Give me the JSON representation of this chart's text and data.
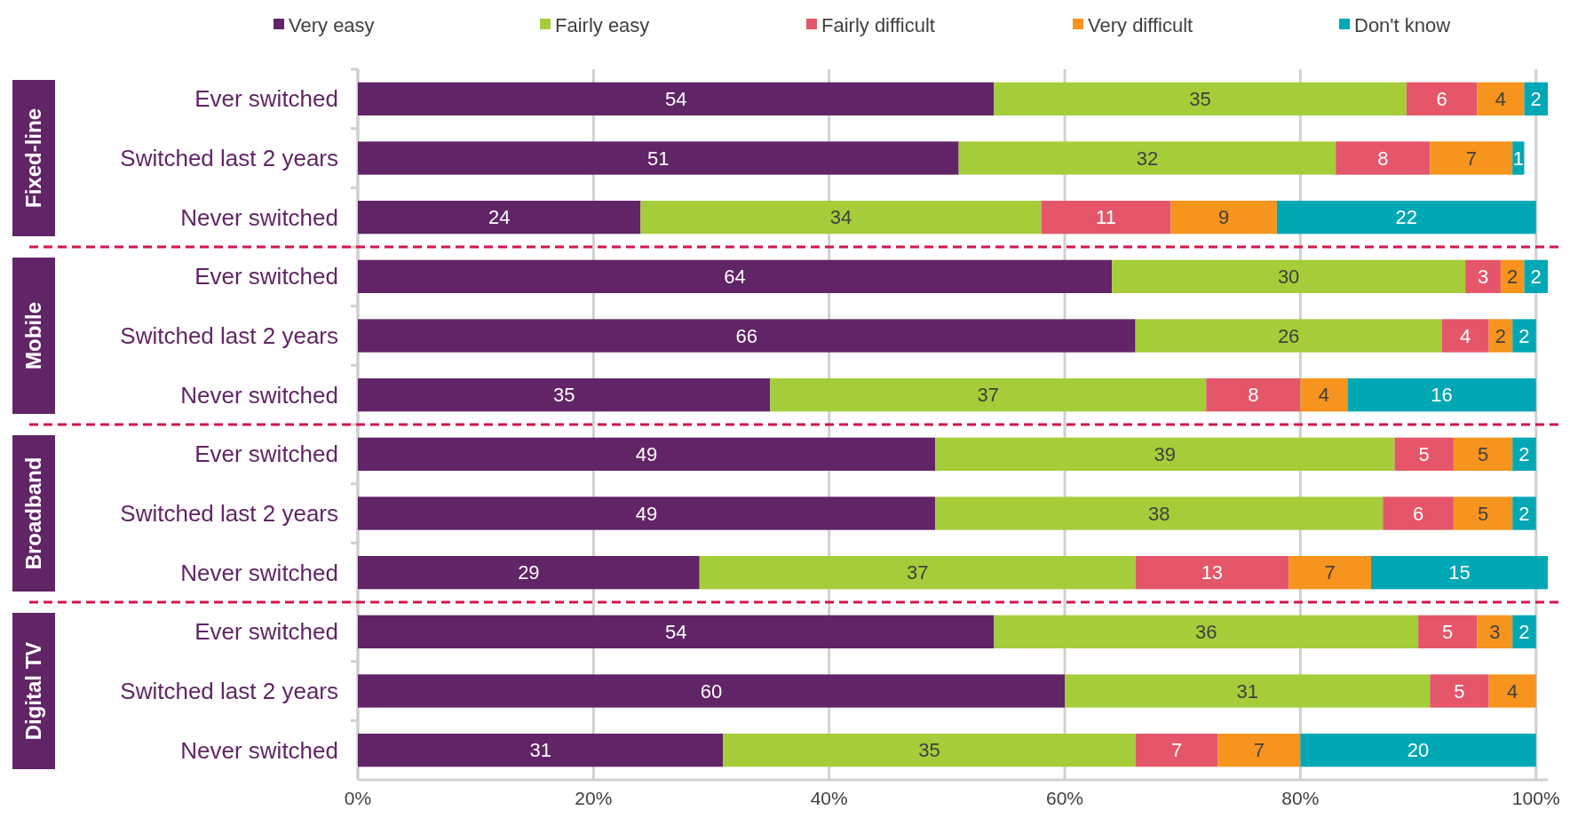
{
  "chart_data": {
    "type": "bar",
    "orientation": "horizontal",
    "stacked": true,
    "data_labels": true,
    "legend": "top",
    "grid": "x",
    "categories": [
      "Ever switched",
      "Switched last 2 years",
      "Never switched",
      "Ever switched",
      "Switched last 2 years",
      "Never switched",
      "Ever switched",
      "Switched last 2 years",
      "Never switched",
      "Ever switched",
      "Switched last 2 years",
      "Never switched"
    ],
    "annotations": [
      "Fixed-line",
      "Mobile",
      "Broadband",
      "Digital TV"
    ],
    "xlim": [
      0,
      101
    ],
    "xticks": [
      {
        "value": 0,
        "label": "0%"
      },
      {
        "value": 20,
        "label": "20%"
      },
      {
        "value": 40,
        "label": "40%"
      },
      {
        "value": 60,
        "label": "60%"
      },
      {
        "value": 80,
        "label": "80%"
      },
      {
        "value": 100,
        "label": "100%"
      }
    ],
    "series": [
      {
        "name": "Very easy",
        "color": "#612466",
        "values": [
          54,
          51,
          24,
          64,
          66,
          35,
          49,
          49,
          29,
          54,
          60,
          31
        ]
      },
      {
        "name": "Fairly easy",
        "color": "#a5cd39",
        "values": [
          35,
          32,
          34,
          30,
          26,
          37,
          39,
          38,
          37,
          36,
          31,
          35
        ]
      },
      {
        "name": "Fairly difficult",
        "color": "#e5566a",
        "values": [
          6,
          8,
          11,
          3,
          4,
          8,
          5,
          6,
          13,
          5,
          5,
          7
        ]
      },
      {
        "name": "Very difficult",
        "color": "#f7941d",
        "values": [
          4,
          7,
          9,
          2,
          2,
          4,
          5,
          5,
          7,
          3,
          4,
          7
        ]
      },
      {
        "name": "Don't know",
        "color": "#00a7b5",
        "values": [
          2,
          1,
          22,
          2,
          2,
          16,
          2,
          2,
          15,
          2,
          null,
          20
        ]
      }
    ]
  }
}
